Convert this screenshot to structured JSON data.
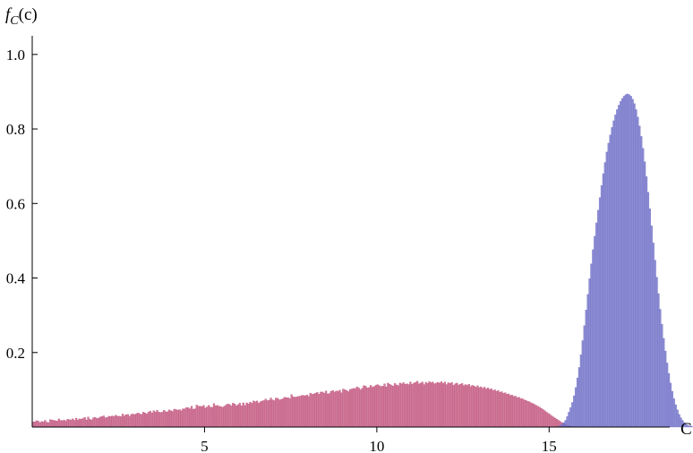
{
  "chart_data": {
    "type": "bar",
    "title": "",
    "xlabel": "C",
    "ylabel_main": "f",
    "ylabel_sub": "C",
    "ylabel_suffix": "(c)",
    "xlim": [
      0,
      18.5
    ],
    "ylim": [
      0,
      1.05
    ],
    "x_ticks": [
      5,
      10,
      15
    ],
    "x_tick_labels": [
      "5",
      "10",
      "15"
    ],
    "y_ticks": [
      0.2,
      0.4,
      0.6,
      0.8,
      1.0
    ],
    "y_tick_labels": [
      "0.2",
      "0.4",
      "0.6",
      "0.8",
      "1.0"
    ],
    "bin_width": 0.05,
    "series": [
      {
        "color": "#c0507a",
        "bin_start": 0,
        "values": [
          0.014,
          0.014,
          0.017,
          0.016,
          0.012,
          0.015,
          0.014,
          0.018,
          0.013,
          0.012,
          0.02,
          0.019,
          0.018,
          0.017,
          0.016,
          0.022,
          0.018,
          0.017,
          0.019,
          0.016,
          0.021,
          0.02,
          0.019,
          0.022,
          0.018,
          0.024,
          0.019,
          0.022,
          0.021,
          0.023,
          0.026,
          0.019,
          0.027,
          0.021,
          0.019,
          0.025,
          0.026,
          0.023,
          0.024,
          0.027,
          0.028,
          0.03,
          0.025,
          0.026,
          0.029,
          0.028,
          0.03,
          0.028,
          0.032,
          0.029,
          0.029,
          0.028,
          0.035,
          0.03,
          0.033,
          0.034,
          0.029,
          0.034,
          0.035,
          0.033,
          0.036,
          0.038,
          0.035,
          0.034,
          0.04,
          0.038,
          0.035,
          0.04,
          0.043,
          0.038,
          0.044,
          0.04,
          0.045,
          0.04,
          0.039,
          0.04,
          0.045,
          0.041,
          0.041,
          0.046,
          0.044,
          0.042,
          0.048,
          0.047,
          0.045,
          0.047,
          0.044,
          0.049,
          0.049,
          0.052,
          0.052,
          0.049,
          0.056,
          0.048,
          0.049,
          0.059,
          0.056,
          0.056,
          0.055,
          0.058,
          0.051,
          0.054,
          0.058,
          0.053,
          0.053,
          0.063,
          0.057,
          0.058,
          0.056,
          0.055,
          0.053,
          0.056,
          0.059,
          0.062,
          0.061,
          0.057,
          0.064,
          0.062,
          0.057,
          0.06,
          0.064,
          0.057,
          0.065,
          0.058,
          0.065,
          0.062,
          0.067,
          0.064,
          0.07,
          0.068,
          0.07,
          0.064,
          0.068,
          0.07,
          0.071,
          0.075,
          0.071,
          0.072,
          0.078,
          0.073,
          0.071,
          0.078,
          0.077,
          0.073,
          0.074,
          0.076,
          0.08,
          0.079,
          0.079,
          0.076,
          0.087,
          0.081,
          0.08,
          0.081,
          0.082,
          0.083,
          0.085,
          0.085,
          0.084,
          0.086,
          0.082,
          0.091,
          0.088,
          0.089,
          0.091,
          0.093,
          0.088,
          0.094,
          0.094,
          0.091,
          0.097,
          0.089,
          0.09,
          0.096,
          0.098,
          0.094,
          0.097,
          0.096,
          0.099,
          0.092,
          0.102,
          0.1,
          0.098,
          0.095,
          0.101,
          0.102,
          0.104,
          0.103,
          0.108,
          0.105,
          0.1,
          0.104,
          0.111,
          0.11,
          0.105,
          0.106,
          0.112,
          0.107,
          0.109,
          0.112,
          0.114,
          0.111,
          0.109,
          0.11,
          0.116,
          0.108,
          0.118,
          0.115,
          0.112,
          0.11,
          0.117,
          0.113,
          0.111,
          0.118,
          0.116,
          0.119,
          0.115,
          0.116,
          0.114,
          0.121,
          0.115,
          0.118,
          0.12,
          0.123,
          0.116,
          0.118,
          0.121,
          0.114,
          0.12,
          0.117,
          0.122,
          0.119,
          0.121,
          0.116,
          0.118,
          0.12,
          0.118,
          0.122,
          0.117,
          0.121,
          0.114,
          0.119,
          0.117,
          0.12,
          0.112,
          0.116,
          0.118,
          0.113,
          0.115,
          0.117,
          0.111,
          0.114,
          0.112,
          0.115,
          0.109,
          0.112,
          0.11,
          0.107,
          0.111,
          0.106,
          0.108,
          0.104,
          0.107,
          0.102,
          0.105,
          0.101,
          0.103,
          0.098,
          0.1,
          0.096,
          0.098,
          0.093,
          0.095,
          0.091,
          0.092,
          0.088,
          0.089,
          0.085,
          0.086,
          0.082,
          0.083,
          0.079,
          0.08,
          0.076,
          0.076,
          0.073,
          0.072,
          0.069,
          0.068,
          0.065,
          0.063,
          0.061,
          0.058,
          0.056,
          0.053,
          0.05,
          0.047,
          0.044,
          0.04,
          0.037,
          0.034,
          0.03,
          0.027,
          0.024,
          0.021,
          0.018,
          0.015,
          0.012,
          0.009,
          0.007,
          0.005,
          0.004,
          0.003,
          0.002,
          0.002,
          0.001,
          0.001,
          0.001,
          0.001,
          0.0,
          0.0
        ]
      },
      {
        "color": "#7070c8",
        "bin_start": 15.25,
        "values": [
          0.002,
          0.004,
          0.008,
          0.012,
          0.018,
          0.028,
          0.04,
          0.052,
          0.066,
          0.084,
          0.106,
          0.132,
          0.16,
          0.194,
          0.232,
          0.272,
          0.314,
          0.356,
          0.398,
          0.438,
          0.476,
          0.512,
          0.548,
          0.582,
          0.616,
          0.648,
          0.68,
          0.71,
          0.738,
          0.762,
          0.784,
          0.804,
          0.822,
          0.838,
          0.852,
          0.864,
          0.874,
          0.882,
          0.888,
          0.892,
          0.894,
          0.892,
          0.888,
          0.88,
          0.868,
          0.852,
          0.832,
          0.808,
          0.78,
          0.748,
          0.712,
          0.672,
          0.63,
          0.586,
          0.54,
          0.494,
          0.448,
          0.402,
          0.358,
          0.316,
          0.276,
          0.238,
          0.204,
          0.172,
          0.144,
          0.118,
          0.096,
          0.076,
          0.06,
          0.046,
          0.034,
          0.025,
          0.018,
          0.012,
          0.008,
          0.005,
          0.003,
          0.002,
          0.001,
          0.001,
          0.0
        ]
      }
    ],
    "grid": false,
    "legend": "none"
  }
}
